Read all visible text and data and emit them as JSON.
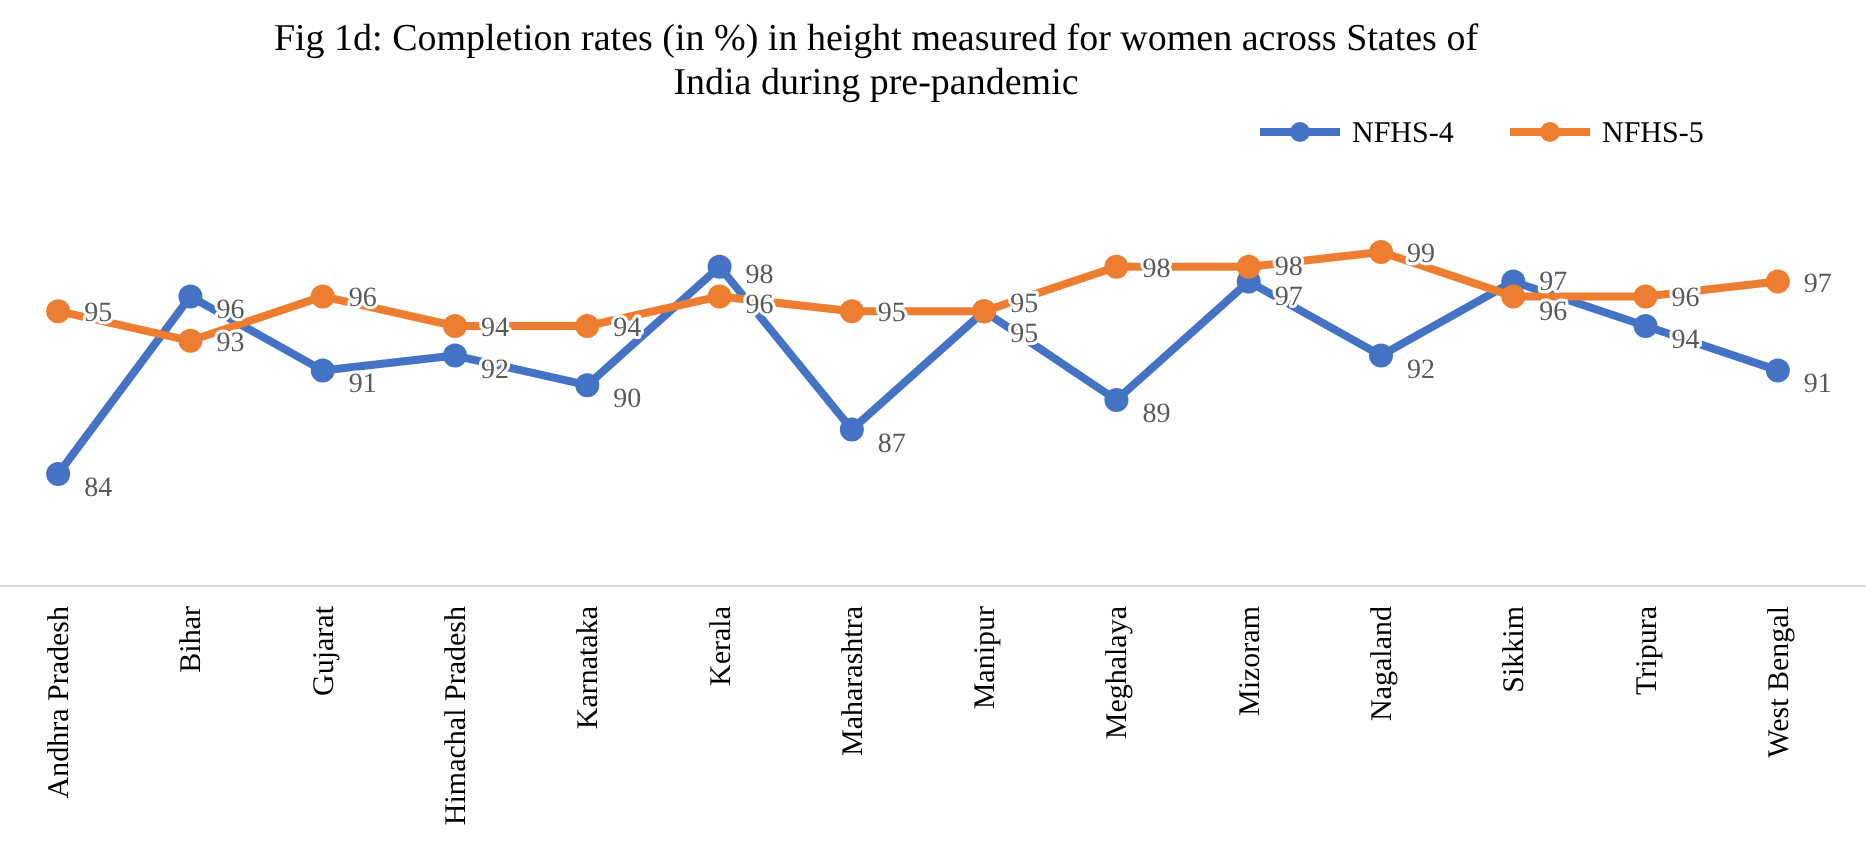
{
  "chart_data": {
    "type": "line",
    "title": "Fig 1d: Completion rates (in %) in height measured for women across States of India during pre-pandemic",
    "categories": [
      "Andhra Pradesh",
      "Bihar",
      "Gujarat",
      "Himachal Pradesh",
      "Karnataka",
      "Kerala",
      "Maharashtra",
      "Manipur",
      "Meghalaya",
      "Mizoram",
      "Nagaland",
      "Sikkim",
      "Tripura",
      "West Bengal"
    ],
    "series": [
      {
        "name": "NFHS-4",
        "color": "#4472c4",
        "values": [
          84,
          96,
          91,
          92,
          90,
          98,
          87,
          95,
          89,
          97,
          92,
          97,
          94,
          91
        ]
      },
      {
        "name": "NFHS-5",
        "color": "#ed7d31",
        "values": [
          95,
          93,
          96,
          94,
          94,
          96,
          95,
          95,
          98,
          98,
          99,
          96,
          96,
          97
        ]
      }
    ],
    "tick_labels": "x",
    "data_labels": true,
    "legend": "top right",
    "marker": "circle",
    "line_style": "solid"
  }
}
